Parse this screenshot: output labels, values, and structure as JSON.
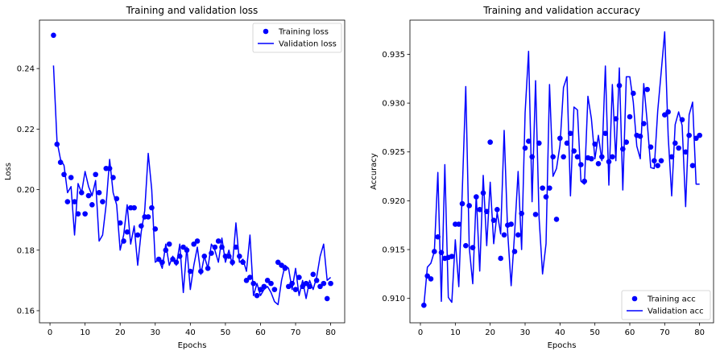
{
  "chart_data": [
    {
      "type": "line",
      "title": "Training and validation loss",
      "xlabel": "Epochs",
      "ylabel": "Loss",
      "xlim": [
        -3,
        84
      ],
      "ylim": [
        0.156,
        0.256
      ],
      "xticks": [
        0,
        10,
        20,
        30,
        40,
        50,
        60,
        70,
        80
      ],
      "yticks": [
        0.16,
        0.18,
        0.2,
        0.22,
        0.24
      ],
      "ytick_labels": [
        "0.16",
        "0.18",
        "0.20",
        "0.22",
        "0.24"
      ],
      "legend_position": "top-right",
      "grid": false,
      "series": [
        {
          "name": "Training loss",
          "style": "markers",
          "color": "#0000ff",
          "x": [
            1,
            2,
            3,
            4,
            5,
            6,
            7,
            8,
            9,
            10,
            11,
            12,
            13,
            14,
            15,
            16,
            17,
            18,
            19,
            20,
            21,
            22,
            23,
            24,
            25,
            26,
            27,
            28,
            29,
            30,
            31,
            32,
            33,
            34,
            35,
            36,
            37,
            38,
            39,
            40,
            41,
            42,
            43,
            44,
            45,
            46,
            47,
            48,
            49,
            50,
            51,
            52,
            53,
            54,
            55,
            56,
            57,
            58,
            59,
            60,
            61,
            62,
            63,
            64,
            65,
            66,
            67,
            68,
            69,
            70,
            71,
            72,
            73,
            74,
            75,
            76,
            77,
            78,
            79,
            80
          ],
          "y": [
            0.251,
            0.215,
            0.209,
            0.205,
            0.196,
            0.204,
            0.196,
            0.192,
            0.199,
            0.192,
            0.198,
            0.195,
            0.205,
            0.199,
            0.196,
            0.207,
            0.207,
            0.204,
            0.197,
            0.189,
            0.183,
            0.186,
            0.194,
            0.194,
            0.185,
            0.188,
            0.191,
            0.191,
            0.194,
            0.187,
            0.177,
            0.176,
            0.18,
            0.182,
            0.177,
            0.176,
            0.178,
            0.181,
            0.18,
            0.173,
            0.182,
            0.183,
            0.173,
            0.178,
            0.174,
            0.179,
            0.181,
            0.183,
            0.181,
            0.178,
            0.178,
            0.176,
            0.181,
            0.178,
            0.176,
            0.17,
            0.171,
            0.169,
            0.165,
            0.167,
            0.168,
            0.17,
            0.169,
            0.167,
            0.176,
            0.175,
            0.174,
            0.168,
            0.169,
            0.167,
            0.171,
            0.168,
            0.169,
            0.168,
            0.172,
            0.17,
            0.168,
            0.169,
            0.164,
            0.169
          ]
        },
        {
          "name": "Validation loss",
          "style": "line",
          "color": "#0000ff",
          "x": [
            1,
            2,
            3,
            4,
            5,
            6,
            7,
            8,
            9,
            10,
            11,
            12,
            13,
            14,
            15,
            16,
            17,
            18,
            19,
            20,
            21,
            22,
            23,
            24,
            25,
            26,
            27,
            28,
            29,
            30,
            31,
            32,
            33,
            34,
            35,
            36,
            37,
            38,
            39,
            40,
            41,
            42,
            43,
            44,
            45,
            46,
            47,
            48,
            49,
            50,
            51,
            52,
            53,
            54,
            55,
            56,
            57,
            58,
            59,
            60,
            61,
            62,
            63,
            64,
            65,
            66,
            67,
            68,
            69,
            70,
            71,
            72,
            73,
            74,
            75,
            76,
            77,
            78,
            79,
            80
          ],
          "y": [
            0.241,
            0.216,
            0.21,
            0.208,
            0.199,
            0.201,
            0.185,
            0.202,
            0.199,
            0.206,
            0.201,
            0.198,
            0.203,
            0.183,
            0.185,
            0.195,
            0.21,
            0.199,
            0.195,
            0.18,
            0.185,
            0.195,
            0.182,
            0.188,
            0.175,
            0.186,
            0.193,
            0.212,
            0.2,
            0.176,
            0.177,
            0.174,
            0.182,
            0.175,
            0.178,
            0.175,
            0.182,
            0.166,
            0.181,
            0.167,
            0.175,
            0.181,
            0.172,
            0.178,
            0.174,
            0.182,
            0.18,
            0.176,
            0.184,
            0.176,
            0.18,
            0.175,
            0.189,
            0.176,
            0.177,
            0.173,
            0.185,
            0.165,
            0.169,
            0.165,
            0.167,
            0.168,
            0.166,
            0.163,
            0.162,
            0.17,
            0.175,
            0.174,
            0.167,
            0.174,
            0.165,
            0.17,
            0.164,
            0.17,
            0.167,
            0.171,
            0.178,
            0.182,
            0.17,
            0.171
          ]
        }
      ]
    },
    {
      "type": "line",
      "title": "Training and validation accuracy",
      "xlabel": "Epochs",
      "ylabel": "Accuracy",
      "xlim": [
        -3,
        84
      ],
      "ylim": [
        0.9075,
        0.9385
      ],
      "xticks": [
        0,
        10,
        20,
        30,
        40,
        50,
        60,
        70,
        80
      ],
      "yticks": [
        0.91,
        0.915,
        0.92,
        0.925,
        0.93,
        0.935
      ],
      "ytick_labels": [
        "0.910",
        "0.915",
        "0.920",
        "0.925",
        "0.930",
        "0.935"
      ],
      "legend_position": "bottom-right",
      "grid": false,
      "series": [
        {
          "name": "Training acc",
          "style": "markers",
          "color": "#0000ff",
          "x": [
            1,
            2,
            3,
            4,
            5,
            6,
            7,
            8,
            9,
            10,
            11,
            12,
            13,
            14,
            15,
            16,
            17,
            18,
            19,
            20,
            21,
            22,
            23,
            24,
            25,
            26,
            27,
            28,
            29,
            30,
            31,
            32,
            33,
            34,
            35,
            36,
            37,
            38,
            39,
            40,
            41,
            42,
            43,
            44,
            45,
            46,
            47,
            48,
            49,
            50,
            51,
            52,
            53,
            54,
            55,
            56,
            57,
            58,
            59,
            60,
            61,
            62,
            63,
            64,
            65,
            66,
            67,
            68,
            69,
            70,
            71,
            72,
            73,
            74,
            75,
            76,
            77,
            78,
            79,
            80
          ],
          "y": [
            0.9093,
            0.9123,
            0.912,
            0.9148,
            0.9163,
            0.9147,
            0.9141,
            0.9142,
            0.9143,
            0.9176,
            0.9176,
            0.9197,
            0.9154,
            0.9195,
            0.9152,
            0.9204,
            0.9191,
            0.9208,
            0.9189,
            0.926,
            0.918,
            0.9191,
            0.9141,
            0.9165,
            0.9175,
            0.9176,
            0.9148,
            0.9165,
            0.9187,
            0.9254,
            0.9261,
            0.9245,
            0.9186,
            0.9259,
            0.9213,
            0.9204,
            0.9213,
            0.9245,
            0.9181,
            0.9264,
            0.9245,
            0.9259,
            0.9269,
            0.9251,
            0.9245,
            0.9237,
            0.922,
            0.9244,
            0.9243,
            0.9258,
            0.9238,
            0.9245,
            0.9269,
            0.924,
            0.9245,
            0.9284,
            0.9318,
            0.9253,
            0.926,
            0.9286,
            0.931,
            0.9267,
            0.9266,
            0.9279,
            0.9314,
            0.9255,
            0.9241,
            0.9236,
            0.9241,
            0.9288,
            0.9291,
            0.9245,
            0.9259,
            0.9254,
            0.9283,
            0.925,
            0.9267,
            0.9236,
            0.9264,
            0.9267
          ]
        },
        {
          "name": "Validation acc",
          "style": "line",
          "color": "#0000ff",
          "x": [
            1,
            2,
            3,
            4,
            5,
            6,
            7,
            8,
            9,
            10,
            11,
            12,
            13,
            14,
            15,
            16,
            17,
            18,
            19,
            20,
            21,
            22,
            23,
            24,
            25,
            26,
            27,
            28,
            29,
            30,
            31,
            32,
            33,
            34,
            35,
            36,
            37,
            38,
            39,
            40,
            41,
            42,
            43,
            44,
            45,
            46,
            47,
            48,
            49,
            50,
            51,
            52,
            53,
            54,
            55,
            56,
            57,
            58,
            59,
            60,
            61,
            62,
            63,
            64,
            65,
            66,
            67,
            68,
            69,
            70,
            71,
            72,
            73,
            74,
            75,
            76,
            77,
            78,
            79,
            80
          ],
          "y": [
            0.9093,
            0.9132,
            0.9136,
            0.9148,
            0.9229,
            0.9097,
            0.9237,
            0.9101,
            0.9096,
            0.916,
            0.9112,
            0.921,
            0.9317,
            0.9152,
            0.9115,
            0.9206,
            0.9128,
            0.9226,
            0.9154,
            0.9219,
            0.9156,
            0.9188,
            0.9166,
            0.9272,
            0.9168,
            0.9113,
            0.9167,
            0.923,
            0.915,
            0.929,
            0.9353,
            0.9199,
            0.9323,
            0.9183,
            0.9125,
            0.9156,
            0.9319,
            0.9225,
            0.9233,
            0.9257,
            0.9316,
            0.9327,
            0.9205,
            0.9296,
            0.9293,
            0.922,
            0.9217,
            0.9307,
            0.9284,
            0.9243,
            0.9267,
            0.9241,
            0.9338,
            0.9216,
            0.9319,
            0.9241,
            0.9336,
            0.9211,
            0.9327,
            0.9327,
            0.9301,
            0.9256,
            0.9243,
            0.932,
            0.928,
            0.9234,
            0.9233,
            0.9292,
            0.9332,
            0.9373,
            0.9266,
            0.9205,
            0.9278,
            0.9291,
            0.9277,
            0.9194,
            0.9288,
            0.9301,
            0.9217,
            0.9217
          ]
        }
      ]
    }
  ]
}
